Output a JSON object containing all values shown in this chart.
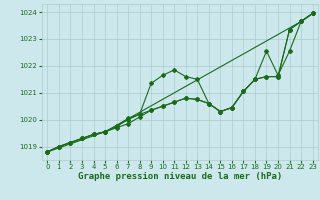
{
  "bg_color": "#cce8ec",
  "grid_color": "#aacccc",
  "line_color": "#1a6b1a",
  "marker_color": "#1a6b1a",
  "xlabel": "Graphe pression niveau de la mer (hPa)",
  "xlabel_color": "#1a6b1a",
  "xlabel_fontsize": 6.5,
  "tick_color": "#1a6b1a",
  "ylim": [
    1018.5,
    1024.3
  ],
  "xlim": [
    -0.5,
    23.5
  ],
  "yticks": [
    1019,
    1020,
    1021,
    1022,
    1023,
    1024
  ],
  "xticks": [
    0,
    1,
    2,
    3,
    4,
    5,
    6,
    7,
    8,
    9,
    10,
    11,
    12,
    13,
    14,
    15,
    16,
    17,
    18,
    19,
    20,
    21,
    22,
    23
  ],
  "series1_x": [
    0,
    1,
    2,
    3,
    4,
    5,
    22,
    23
  ],
  "series1_y": [
    1018.8,
    1019.0,
    1019.15,
    1019.3,
    1019.45,
    1019.55,
    1023.65,
    1023.95
  ],
  "series2_x": [
    0,
    1,
    2,
    3,
    4,
    5,
    6,
    7,
    8,
    9,
    10,
    11,
    12,
    13,
    14,
    15,
    16,
    17,
    18,
    19,
    20,
    21,
    22,
    23
  ],
  "series2_y": [
    1018.8,
    1019.0,
    1019.15,
    1019.3,
    1019.45,
    1019.55,
    1019.75,
    1020.0,
    1020.2,
    1021.35,
    1021.65,
    1021.85,
    1021.6,
    1021.5,
    1020.6,
    1020.3,
    1020.45,
    1021.05,
    1021.5,
    1021.6,
    1021.6,
    1023.35,
    1023.65,
    1023.95
  ],
  "series3_x": [
    0,
    1,
    2,
    3,
    4,
    5,
    6,
    7,
    8,
    9,
    10,
    11,
    12,
    13,
    14,
    15,
    16,
    17,
    18,
    19,
    20,
    21,
    22,
    23
  ],
  "series3_y": [
    1018.8,
    1019.0,
    1019.15,
    1019.3,
    1019.45,
    1019.55,
    1019.7,
    1019.85,
    1020.1,
    1020.35,
    1020.5,
    1020.65,
    1020.8,
    1020.75,
    1020.6,
    1020.3,
    1020.45,
    1021.05,
    1021.5,
    1021.6,
    1021.6,
    1023.35,
    1023.65,
    1023.95
  ],
  "series4_x": [
    0,
    5,
    6,
    7,
    8,
    9,
    10,
    11,
    12,
    13,
    14,
    15,
    16,
    17,
    18,
    19,
    20,
    21,
    22,
    23
  ],
  "series4_y": [
    1018.8,
    1019.55,
    1019.75,
    1020.05,
    1020.2,
    1020.35,
    1020.5,
    1020.65,
    1020.8,
    1020.75,
    1020.6,
    1020.3,
    1020.45,
    1021.05,
    1021.5,
    1022.55,
    1021.65,
    1022.55,
    1023.65,
    1023.95
  ]
}
